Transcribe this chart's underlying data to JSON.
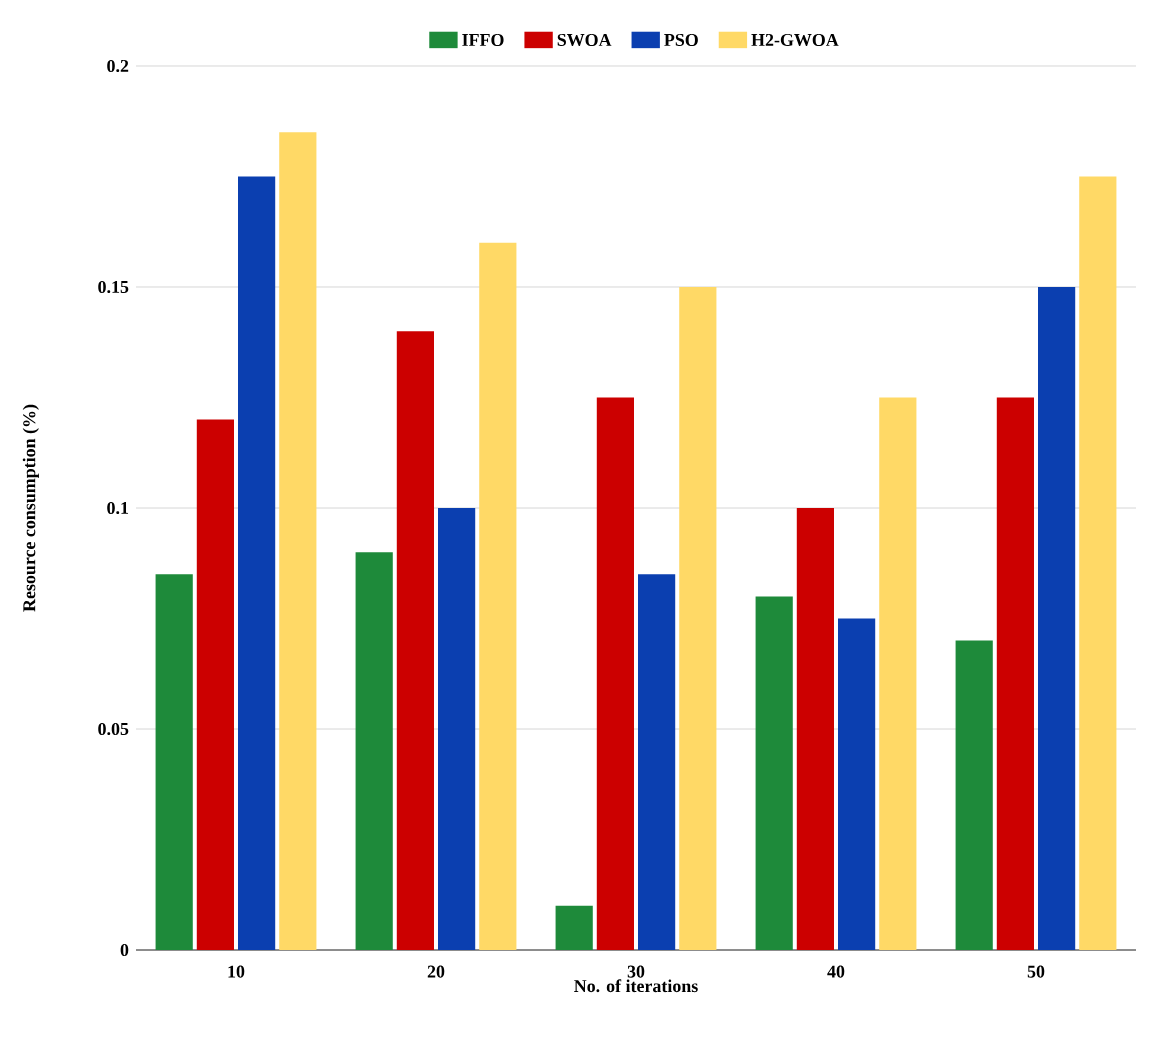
{
  "chart_data": {
    "type": "bar",
    "xlabel": "No. of iterations",
    "ylabel": "Resource consumption (%)",
    "categories": [
      "10",
      "20",
      "30",
      "40",
      "50"
    ],
    "series": [
      {
        "name": "IFFO",
        "color": "#1e8a3a",
        "values": [
          0.085,
          0.09,
          0.01,
          0.08,
          0.07
        ]
      },
      {
        "name": "SWOA",
        "color": "#cc0000",
        "values": [
          0.12,
          0.14,
          0.125,
          0.1,
          0.125
        ]
      },
      {
        "name": "PSO",
        "color": "#0b3fb0",
        "values": [
          0.175,
          0.1,
          0.085,
          0.075,
          0.15
        ]
      },
      {
        "name": "H2-GWOA",
        "color": "#ffd966",
        "values": [
          0.185,
          0.16,
          0.15,
          0.125,
          0.175
        ]
      }
    ],
    "ylim": [
      0,
      0.2
    ],
    "yticks": [
      0,
      0.05,
      0.1,
      0.15,
      0.2
    ],
    "grid": "y",
    "legend": "top"
  }
}
